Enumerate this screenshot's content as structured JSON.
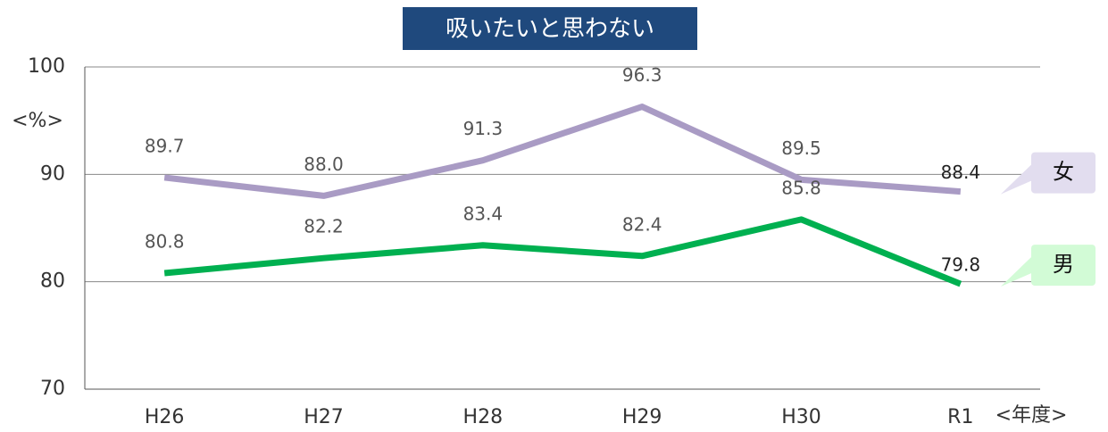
{
  "chart_data": {
    "type": "line",
    "title": "吸いたいと思わない",
    "y_label": "<%>",
    "x_label": "<年度>",
    "categories": [
      "H26",
      "H27",
      "H28",
      "H29",
      "H30",
      "R1"
    ],
    "series": [
      {
        "name": "女",
        "color": "#a99bc4",
        "legend_fill": "#e2ddef",
        "values": [
          89.7,
          88.0,
          91.3,
          96.3,
          89.5,
          88.4
        ],
        "value_labels": [
          "89.7",
          "88.0",
          "91.3",
          "96.3",
          "89.5",
          "88.4"
        ]
      },
      {
        "name": "男",
        "color": "#00b050",
        "legend_fill": "#d2fbd6",
        "values": [
          80.8,
          82.2,
          83.4,
          82.4,
          85.8,
          79.8
        ],
        "value_labels": [
          "80.8",
          "82.2",
          "83.4",
          "82.4",
          "85.8",
          "79.8"
        ]
      }
    ],
    "ylim": [
      70,
      100
    ],
    "yticks": [
      70,
      80,
      90,
      100
    ],
    "grid": true
  }
}
